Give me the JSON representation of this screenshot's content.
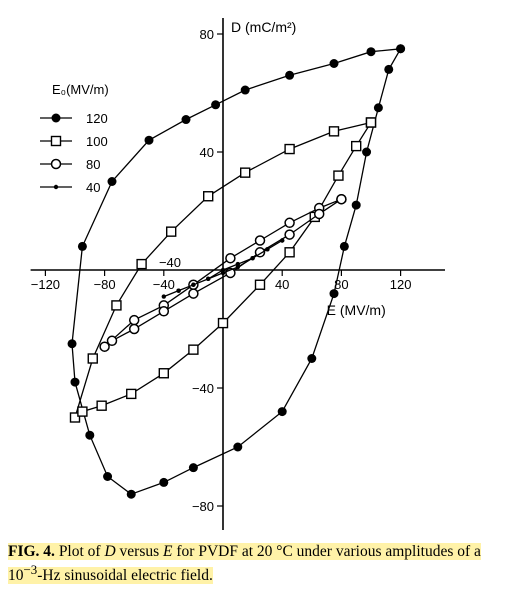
{
  "chart_data": {
    "type": "line",
    "xlabel": "E (MV/m)",
    "ylabel": "D (mC/m²)",
    "xlim": [
      -130,
      150
    ],
    "ylim": [
      -92,
      92
    ],
    "x_ticks": [
      -120,
      -80,
      -40,
      40,
      80,
      120
    ],
    "y_ticks": [
      80,
      40,
      -40,
      -80
    ],
    "y_neg_label_at_left": [
      -40
    ],
    "grid": false,
    "legend_title": "E₀(MV/m)",
    "legend_position": "top-left",
    "series": [
      {
        "name": "120",
        "marker": "filled-circle",
        "x": [
          120,
          100,
          75,
          45,
          15,
          -5,
          -25,
          -50,
          -75,
          -95,
          -102,
          -100,
          -90,
          -78,
          -62,
          -40,
          -20,
          10,
          40,
          60,
          75,
          82,
          90,
          97,
          105,
          112,
          120
        ],
        "y": [
          75,
          74,
          70,
          66,
          61,
          56,
          51,
          44,
          30,
          8,
          -25,
          -38,
          -56,
          -70,
          -76,
          -72,
          -67,
          -60,
          -48,
          -30,
          -8,
          8,
          22,
          40,
          55,
          68,
          75
        ]
      },
      {
        "name": "100",
        "marker": "open-square",
        "x": [
          100,
          75,
          45,
          15,
          -10,
          -35,
          -55,
          -72,
          -88,
          -100,
          -95,
          -82,
          -62,
          -40,
          -20,
          0,
          25,
          45,
          62,
          78,
          90,
          100
        ],
        "y": [
          50,
          47,
          41,
          33,
          25,
          13,
          2,
          -12,
          -30,
          -50,
          -48,
          -46,
          -42,
          -35,
          -27,
          -18,
          -5,
          6,
          18,
          32,
          42,
          50
        ]
      },
      {
        "name": "80",
        "marker": "open-circle",
        "x": [
          80,
          65,
          45,
          25,
          5,
          -20,
          -40,
          -60,
          -80,
          -75,
          -60,
          -40,
          -20,
          5,
          25,
          45,
          65,
          80
        ],
        "y": [
          24,
          21,
          16,
          10,
          4,
          -5,
          -12,
          -17,
          -26,
          -24,
          -20,
          -14,
          -8,
          -1,
          6,
          12,
          19,
          24
        ]
      },
      {
        "name": "40",
        "marker": "small-dot",
        "x": [
          40,
          30,
          20,
          10,
          0,
          -10,
          -20,
          -30,
          -40,
          -30,
          -20,
          -10,
          0,
          10,
          20,
          30,
          40
        ],
        "y": [
          10,
          7,
          4,
          1,
          -1,
          -3,
          -5,
          -7,
          -9,
          -7,
          -5,
          -3,
          0,
          2,
          4,
          7,
          10
        ]
      }
    ]
  },
  "caption": {
    "fig_label": "FIG. 4.",
    "text_part1": "Plot of ",
    "var_d": "D",
    "text_part2": " versus ",
    "var_e": "E",
    "text_part3": " for PVDF at 20 °C under various amplitudes of a",
    "line2_base": "10",
    "line2_superscript": "−3",
    "line2_rest": "-Hz sinusoidal electric field."
  }
}
